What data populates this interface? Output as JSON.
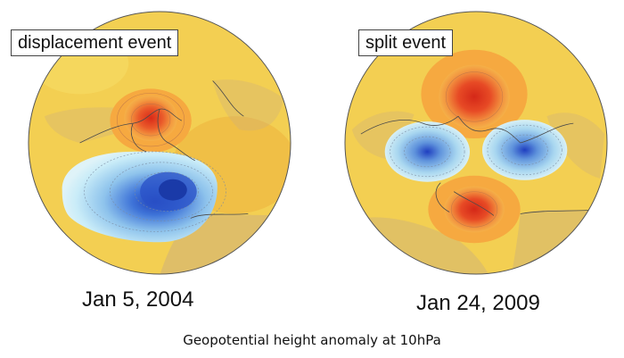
{
  "panels": [
    {
      "event_label": "displacement event",
      "date": "Jan 5, 2004"
    },
    {
      "event_label": "split event",
      "date": "Jan 24, 2009"
    }
  ],
  "caption": "Geopotential height anomaly at 10hPa",
  "colors": {
    "background_anomaly": "#f3cf52",
    "positive_weak": "#f6a940",
    "positive_strong": "#e3371f",
    "negative_weak": "#c7e8f6",
    "negative_strong": "#1f4fc8",
    "land_overlay": "#cdb07a",
    "coastline": "#4a4a4a"
  }
}
